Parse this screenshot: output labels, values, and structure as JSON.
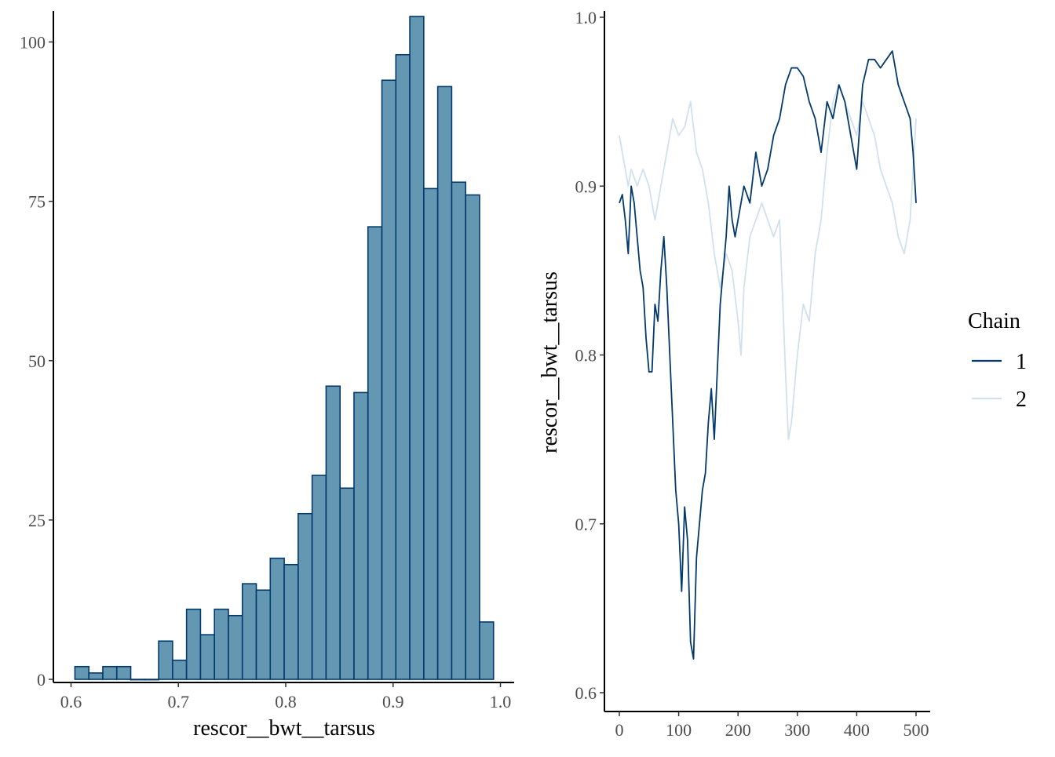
{
  "chart_data": [
    {
      "type": "bar",
      "subtype": "histogram",
      "xlabel": "rescor__bwt__tarsus",
      "ylabel": "",
      "xlim": [
        0.6,
        1.0
      ],
      "ylim": [
        0,
        104
      ],
      "x_ticks": [
        "0.6",
        "0.7",
        "0.8",
        "0.9",
        "1.0"
      ],
      "y_ticks": [
        "0",
        "25",
        "50",
        "75",
        "100"
      ],
      "bin_start": 0.6036,
      "bin_width": 0.013,
      "values": [
        2,
        1,
        2,
        2,
        0,
        0,
        6,
        3,
        11,
        7,
        11,
        10,
        15,
        14,
        19,
        18,
        26,
        32,
        46,
        30,
        45,
        71,
        94,
        98,
        104,
        77,
        93,
        78,
        76,
        9
      ],
      "fill_color": "#6497b1",
      "edge_color": "#03396c",
      "grid": false
    },
    {
      "type": "line",
      "subtype": "trace",
      "xlabel": "",
      "ylabel": "rescor__bwt__tarsus",
      "xlim": [
        0,
        500
      ],
      "ylim": [
        0.6,
        1.0
      ],
      "x_ticks": [
        "0",
        "100",
        "200",
        "300",
        "400",
        "500"
      ],
      "y_ticks": [
        "0.6",
        "0.7",
        "0.8",
        "0.9",
        "1.0"
      ],
      "grid": false,
      "legend": {
        "title": "Chain",
        "position": "right"
      },
      "series": [
        {
          "name": "1",
          "color": "#03396c",
          "points": [
            [
              0,
              0.89
            ],
            [
              5,
              0.895
            ],
            [
              10,
              0.88
            ],
            [
              15,
              0.86
            ],
            [
              20,
              0.9
            ],
            [
              25,
              0.89
            ],
            [
              30,
              0.87
            ],
            [
              35,
              0.85
            ],
            [
              40,
              0.84
            ],
            [
              45,
              0.81
            ],
            [
              50,
              0.79
            ],
            [
              55,
              0.79
            ],
            [
              60,
              0.83
            ],
            [
              65,
              0.82
            ],
            [
              70,
              0.85
            ],
            [
              75,
              0.87
            ],
            [
              80,
              0.84
            ],
            [
              85,
              0.8
            ],
            [
              90,
              0.76
            ],
            [
              95,
              0.72
            ],
            [
              100,
              0.7
            ],
            [
              105,
              0.66
            ],
            [
              110,
              0.71
            ],
            [
              115,
              0.69
            ],
            [
              120,
              0.63
            ],
            [
              125,
              0.62
            ],
            [
              130,
              0.68
            ],
            [
              135,
              0.7
            ],
            [
              140,
              0.72
            ],
            [
              145,
              0.73
            ],
            [
              150,
              0.76
            ],
            [
              155,
              0.78
            ],
            [
              160,
              0.75
            ],
            [
              165,
              0.79
            ],
            [
              170,
              0.83
            ],
            [
              175,
              0.85
            ],
            [
              180,
              0.87
            ],
            [
              185,
              0.9
            ],
            [
              190,
              0.88
            ],
            [
              195,
              0.87
            ],
            [
              200,
              0.88
            ],
            [
              210,
              0.9
            ],
            [
              220,
              0.89
            ],
            [
              230,
              0.92
            ],
            [
              240,
              0.9
            ],
            [
              250,
              0.91
            ],
            [
              260,
              0.93
            ],
            [
              270,
              0.94
            ],
            [
              280,
              0.96
            ],
            [
              290,
              0.97
            ],
            [
              300,
              0.97
            ],
            [
              310,
              0.965
            ],
            [
              320,
              0.95
            ],
            [
              330,
              0.94
            ],
            [
              340,
              0.92
            ],
            [
              350,
              0.95
            ],
            [
              360,
              0.94
            ],
            [
              370,
              0.96
            ],
            [
              380,
              0.95
            ],
            [
              390,
              0.93
            ],
            [
              400,
              0.91
            ],
            [
              410,
              0.96
            ],
            [
              420,
              0.975
            ],
            [
              430,
              0.975
            ],
            [
              440,
              0.97
            ],
            [
              450,
              0.975
            ],
            [
              460,
              0.98
            ],
            [
              470,
              0.96
            ],
            [
              480,
              0.95
            ],
            [
              490,
              0.94
            ],
            [
              495,
              0.92
            ],
            [
              500,
              0.89
            ]
          ]
        },
        {
          "name": "2",
          "color": "#d1e1ec",
          "points": [
            [
              0,
              0.93
            ],
            [
              5,
              0.92
            ],
            [
              10,
              0.91
            ],
            [
              15,
              0.9
            ],
            [
              20,
              0.91
            ],
            [
              30,
              0.9
            ],
            [
              40,
              0.91
            ],
            [
              50,
              0.9
            ],
            [
              60,
              0.88
            ],
            [
              70,
              0.9
            ],
            [
              80,
              0.92
            ],
            [
              90,
              0.94
            ],
            [
              100,
              0.93
            ],
            [
              110,
              0.935
            ],
            [
              120,
              0.95
            ],
            [
              130,
              0.92
            ],
            [
              140,
              0.91
            ],
            [
              150,
              0.89
            ],
            [
              160,
              0.86
            ],
            [
              170,
              0.84
            ],
            [
              180,
              0.86
            ],
            [
              190,
              0.85
            ],
            [
              200,
              0.82
            ],
            [
              205,
              0.8
            ],
            [
              210,
              0.84
            ],
            [
              220,
              0.87
            ],
            [
              230,
              0.88
            ],
            [
              240,
              0.89
            ],
            [
              250,
              0.88
            ],
            [
              260,
              0.87
            ],
            [
              270,
              0.88
            ],
            [
              280,
              0.79
            ],
            [
              285,
              0.75
            ],
            [
              290,
              0.76
            ],
            [
              300,
              0.8
            ],
            [
              310,
              0.83
            ],
            [
              320,
              0.82
            ],
            [
              330,
              0.86
            ],
            [
              340,
              0.88
            ],
            [
              350,
              0.92
            ],
            [
              360,
              0.95
            ],
            [
              370,
              0.96
            ],
            [
              380,
              0.95
            ],
            [
              390,
              0.94
            ],
            [
              400,
              0.93
            ],
            [
              410,
              0.95
            ],
            [
              420,
              0.94
            ],
            [
              430,
              0.93
            ],
            [
              440,
              0.91
            ],
            [
              450,
              0.9
            ],
            [
              460,
              0.89
            ],
            [
              470,
              0.87
            ],
            [
              480,
              0.86
            ],
            [
              490,
              0.88
            ],
            [
              495,
              0.91
            ],
            [
              500,
              0.94
            ]
          ]
        }
      ]
    }
  ]
}
